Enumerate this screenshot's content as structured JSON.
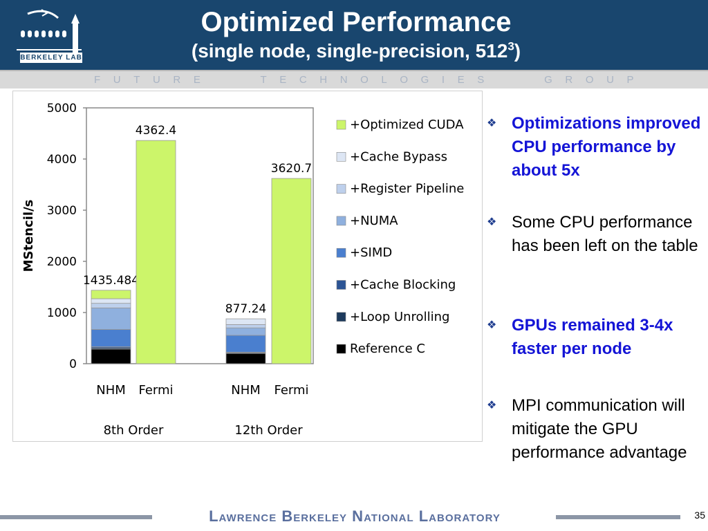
{
  "header": {
    "title": "Optimized Performance",
    "subtitle": "(single node, single-precision, 512",
    "subtitle_sup": "3",
    "subtitle_close": ")",
    "logo_text": "BERKELEY LAB",
    "bg_color": "#19466e"
  },
  "band": {
    "text": "FUTURE   TECHNOLOGIES   GROUP"
  },
  "chart_data": {
    "type": "bar",
    "stacked": true,
    "ylabel": "MStencil/s",
    "ylim": [
      0,
      5000
    ],
    "yticks": [
      "0",
      "1000",
      "2000",
      "3000",
      "4000",
      "5000"
    ],
    "groups": [
      "8th Order",
      "12th Order"
    ],
    "bars": [
      {
        "label": "NHM",
        "group": "8th Order",
        "total_label": "1435.484",
        "total": 1435.484,
        "segments": [
          285,
          25,
          20,
          340,
          420,
          90,
          90,
          165
        ]
      },
      {
        "label": "Fermi",
        "group": "8th Order",
        "total_label": "4362.4",
        "total": 4362.4,
        "segments": [
          0,
          0,
          0,
          0,
          0,
          0,
          0,
          4362.4
        ]
      },
      {
        "label": "NHM",
        "group": "12th Order",
        "total_label": "877.24",
        "total": 877.24,
        "segments": [
          200,
          15,
          10,
          330,
          145,
          65,
          112.24,
          0
        ]
      },
      {
        "label": "Fermi",
        "group": "12th Order",
        "total_label": "3620.7",
        "total": 3620.7,
        "segments": [
          0,
          0,
          0,
          0,
          0,
          0,
          0,
          3620.7
        ]
      }
    ],
    "series": [
      {
        "name": "Reference C",
        "color": "#000000"
      },
      {
        "name": "+Loop Unrolling",
        "color": "#1d3a5c"
      },
      {
        "name": "+Cache Blocking",
        "color": "#2c5494"
      },
      {
        "name": "+SIMD",
        "color": "#4a7fcf"
      },
      {
        "name": "+NUMA",
        "color": "#8fb0de"
      },
      {
        "name": "+Register Pipeline",
        "color": "#bed0ec"
      },
      {
        "name": "+Cache Bypass",
        "color": "#dde6f4"
      },
      {
        "name": "+Optimized CUDA",
        "color": "#ccf56a"
      }
    ],
    "legend_position": "right",
    "legend_order": [
      "+Optimized CUDA",
      "+Cache Bypass",
      "+Register Pipeline",
      "+NUMA",
      "+SIMD",
      "+Cache Blocking",
      "+Loop Unrolling",
      "Reference C"
    ]
  },
  "bullets": [
    {
      "text": "Optimizations improved CPU performance by about 5x",
      "style": "bold-blue"
    },
    {
      "text": "Some CPU performance has been left on the table",
      "style": "plain"
    },
    {
      "text": "GPUs remained 3-4x faster per node",
      "style": "bold-blue"
    },
    {
      "text": "MPI communication will mitigate the GPU performance advantage",
      "style": "plain"
    }
  ],
  "footer": {
    "text": "Lawrence Berkeley National Laboratory",
    "page": "35"
  }
}
